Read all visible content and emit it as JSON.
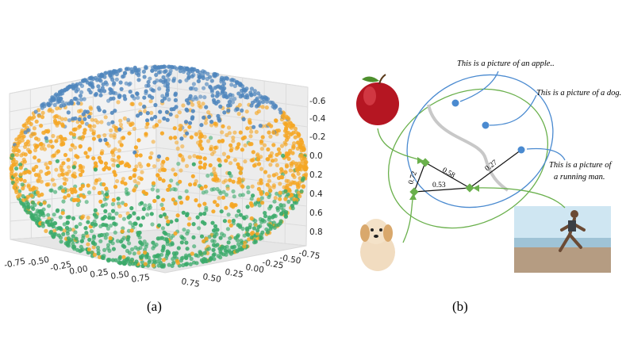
{
  "panel_a": {
    "caption": "(a)",
    "z_ticks": [
      "-0.6",
      "-0.4",
      "-0.2",
      "0.0",
      "0.2",
      "0.4",
      "0.6",
      "0.8"
    ],
    "x_ticks": [
      "-0.75",
      "-0.50",
      "-0.25",
      "0.00",
      "0.25",
      "0.50",
      "0.75"
    ],
    "y_ticks": [
      "0.75",
      "0.50",
      "0.25",
      "0.00",
      "-0.25",
      "-0.50",
      "-0.75"
    ],
    "colors": {
      "blue": "#4f86bd",
      "orange": "#f5a623",
      "green": "#3aaa6a"
    }
  },
  "panel_b": {
    "caption": "(b)",
    "captions": {
      "apple": "This is a picture of an apple..",
      "dog": "This is a picture of a dog.",
      "runner_line1": "This is a picture of",
      "runner_line2": "a running man."
    },
    "edge_labels": {
      "e1": "0.72",
      "e2": "0.58",
      "e3": "0.53",
      "e4": "0.27"
    },
    "colors": {
      "image": "#6ab04c",
      "text": "#4a8ad0",
      "divider": "#c8c8c8"
    }
  }
}
